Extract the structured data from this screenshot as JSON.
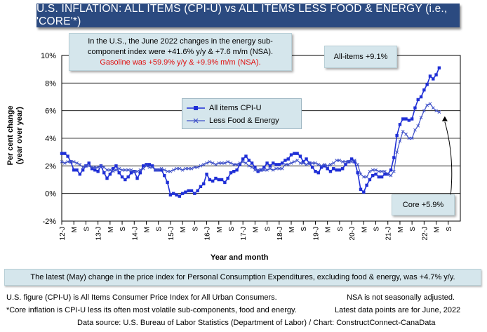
{
  "header": {
    "title": "U.S. INFLATION: ALL ITEMS (CPI-U) vs ALL ITEMS LESS FOOD & ENERGY (i.e., 'CORE'*)"
  },
  "annotations": {
    "energy_line1": "In the U.S., the June 2022 changes in the energy sub-",
    "energy_line2": "component index were +41.6% y/y & +7.6 m/m (NSA).",
    "gasoline": "Gasoline was +59.9% y/y & +9.9% m/m (NSA).",
    "all_items": "All-items +9.1%",
    "core": "Core +5.9%"
  },
  "notes": {
    "pce": "The latest (May) change in the price index for Personal Consumption Expenditures, excluding food & energy, was +4.7% y/y.",
    "cpi_def": "U.S. figure (CPI-U) is All Items Consumer Price Index for All Urban Consumers.",
    "nsa": "NSA is not seasonally adjusted.",
    "core_def": "*Core inflation is CPI-U less its often most volatile sub-components, food and energy.",
    "latest": "Latest data points are for June, 2022",
    "source": "Data source: U.S. Bureau of Labor Statistics (Department of Labor) / Chart: ConstructConnect-CanaData"
  },
  "colors": {
    "title_bg": "#2b4a80",
    "series1": "#1f2fd6",
    "series2": "#3f51c8",
    "callout_bg": "#d5e6ec",
    "red": "#e01010"
  },
  "chart_data": {
    "type": "line",
    "xlabel": "Year and month",
    "ylabel": "Per cent change (year over year)",
    "ylim": [
      -2,
      10
    ],
    "yticks": [
      "-2%",
      "0%",
      "2%",
      "4%",
      "6%",
      "8%",
      "10%"
    ],
    "x_tick_labels": [
      "12-J",
      "M",
      "S",
      "13-J",
      "M",
      "S",
      "14-J",
      "M",
      "S",
      "15-J",
      "M",
      "S",
      "16-J",
      "M",
      "S",
      "17-J",
      "M",
      "S",
      "18-J",
      "M",
      "S",
      "19-J",
      "M",
      "S",
      "20-J",
      "M",
      "S",
      "21-J",
      "M",
      "S",
      "22-J",
      "M",
      "S"
    ],
    "grid": "horizontal",
    "start": "2012-01",
    "end": "2022-06",
    "series": [
      {
        "name": "All items CPI-U",
        "values": [
          2.9,
          2.9,
          2.7,
          2.3,
          1.7,
          1.7,
          1.4,
          1.7,
          2.0,
          2.2,
          1.8,
          1.7,
          1.6,
          2.0,
          1.5,
          1.1,
          1.4,
          1.8,
          2.0,
          1.5,
          1.2,
          1.0,
          1.2,
          1.5,
          1.6,
          1.1,
          1.5,
          2.0,
          2.1,
          2.1,
          2.0,
          1.7,
          1.7,
          1.7,
          1.3,
          0.8,
          -0.1,
          0.0,
          -0.1,
          -0.2,
          0.0,
          0.1,
          0.2,
          0.2,
          0.0,
          0.2,
          0.5,
          0.7,
          1.4,
          1.0,
          0.9,
          1.1,
          1.0,
          1.0,
          0.8,
          1.1,
          1.5,
          1.6,
          1.7,
          2.1,
          2.5,
          2.7,
          2.4,
          2.2,
          1.9,
          1.6,
          1.7,
          1.9,
          2.2,
          2.0,
          2.2,
          2.1,
          2.1,
          2.2,
          2.4,
          2.5,
          2.8,
          2.9,
          2.9,
          2.7,
          2.3,
          2.5,
          2.2,
          1.9,
          1.6,
          1.5,
          1.9,
          2.0,
          1.8,
          1.6,
          1.8,
          1.7,
          1.7,
          1.8,
          2.1,
          2.3,
          2.5,
          2.3,
          1.5,
          0.3,
          0.1,
          0.6,
          1.0,
          1.3,
          1.4,
          1.2,
          1.2,
          1.4,
          1.4,
          1.7,
          2.6,
          4.2,
          5.0,
          5.4,
          5.4,
          5.3,
          5.4,
          6.2,
          6.8,
          7.0,
          7.5,
          7.9,
          8.5,
          8.3,
          8.6,
          9.1
        ]
      },
      {
        "name": "Less Food & Energy",
        "values": [
          2.3,
          2.2,
          2.3,
          2.3,
          2.3,
          2.2,
          2.1,
          1.9,
          2.0,
          2.0,
          1.9,
          1.9,
          1.9,
          2.0,
          1.9,
          1.7,
          1.7,
          1.6,
          1.7,
          1.8,
          1.7,
          1.7,
          1.7,
          1.7,
          1.6,
          1.6,
          1.7,
          1.8,
          2.0,
          1.9,
          1.9,
          1.7,
          1.7,
          1.8,
          1.7,
          1.6,
          1.6,
          1.7,
          1.8,
          1.8,
          1.7,
          1.8,
          1.8,
          1.8,
          1.9,
          1.9,
          2.0,
          2.1,
          2.2,
          2.3,
          2.2,
          2.1,
          2.2,
          2.2,
          2.2,
          2.3,
          2.2,
          2.1,
          2.1,
          2.2,
          2.3,
          2.2,
          2.0,
          1.9,
          1.7,
          1.7,
          1.7,
          1.7,
          1.7,
          1.8,
          1.7,
          1.8,
          1.8,
          1.8,
          2.1,
          2.1,
          2.2,
          2.3,
          2.4,
          2.2,
          2.2,
          2.1,
          2.2,
          2.2,
          2.2,
          2.1,
          2.0,
          2.1,
          2.0,
          2.1,
          2.2,
          2.4,
          2.4,
          2.3,
          2.3,
          2.3,
          2.3,
          2.4,
          2.1,
          1.4,
          1.2,
          1.2,
          1.6,
          1.7,
          1.7,
          1.6,
          1.6,
          1.6,
          1.4,
          1.3,
          1.6,
          3.0,
          3.8,
          4.5,
          4.3,
          4.0,
          4.0,
          4.6,
          4.9,
          5.5,
          6.0,
          6.4,
          6.5,
          6.2,
          6.0,
          5.9
        ]
      }
    ]
  }
}
